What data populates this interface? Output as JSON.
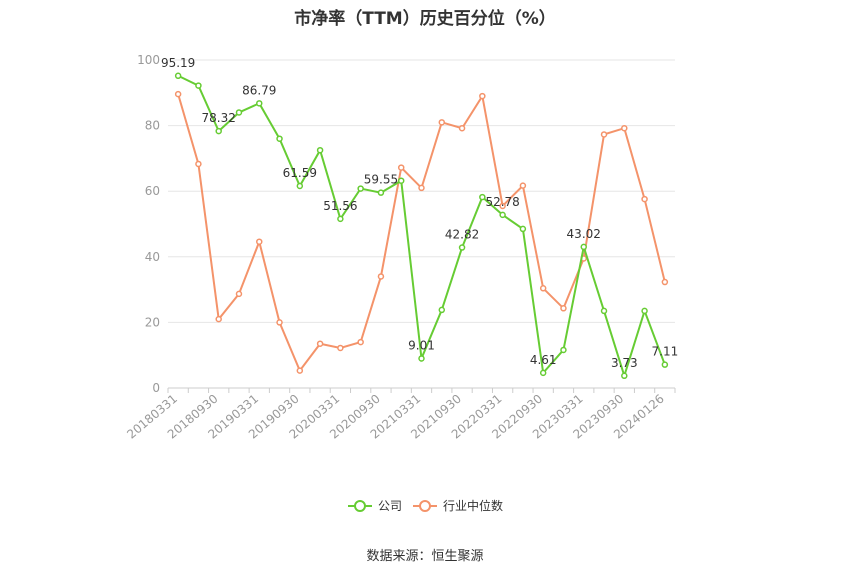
{
  "chart_data": {
    "type": "line",
    "title": "市净率（TTM）历史百分位（%）",
    "source": "数据来源：恒生聚源",
    "ylim": [
      0,
      100
    ],
    "yticks": [
      0,
      20,
      40,
      60,
      80,
      100
    ],
    "grid": true,
    "legend_position": "bottom-center",
    "x": [
      "20180331",
      "20180630",
      "20180930",
      "20181231",
      "20190331",
      "20190630",
      "20190930",
      "20191231",
      "20200331",
      "20200630",
      "20200930",
      "20201231",
      "20210331",
      "20210630",
      "20210930",
      "20211231",
      "20220331",
      "20220630",
      "20220930",
      "20221231",
      "20230331",
      "20230630",
      "20230930",
      "20231231",
      "20240126"
    ],
    "xtick_labels": [
      "20180331",
      "20180930",
      "20190331",
      "20190930",
      "20200331",
      "20200930",
      "20210331",
      "20210930",
      "20220331",
      "20220930",
      "20230331",
      "20230930",
      "20240126"
    ],
    "series": [
      {
        "name": "公司",
        "color": "#66cc33",
        "values": [
          95.19,
          92.2,
          78.32,
          84.0,
          86.79,
          76.0,
          61.59,
          72.5,
          51.56,
          60.8,
          59.55,
          63.2,
          9.01,
          23.8,
          42.82,
          58.2,
          52.78,
          48.5,
          4.61,
          11.6,
          43.02,
          23.5,
          3.73,
          23.5,
          7.11
        ],
        "labels": {
          "0": "95.19",
          "2": "78.32",
          "4": "86.79",
          "6": "61.59",
          "8": "51.56",
          "10": "59.55",
          "12": "9.01",
          "14": "42.82",
          "16": "52.78",
          "18": "4.61",
          "20": "43.02",
          "22": "3.73",
          "24": "7.11"
        }
      },
      {
        "name": "行业中位数",
        "color": "#f4936a",
        "values": [
          89.6,
          68.3,
          21.0,
          28.7,
          44.6,
          20.0,
          5.3,
          13.5,
          12.2,
          14.0,
          34.0,
          67.2,
          61.0,
          81.0,
          79.2,
          89.0,
          55.5,
          61.7,
          30.4,
          24.3,
          39.5,
          77.3,
          79.2,
          57.6,
          32.3
        ]
      }
    ]
  }
}
